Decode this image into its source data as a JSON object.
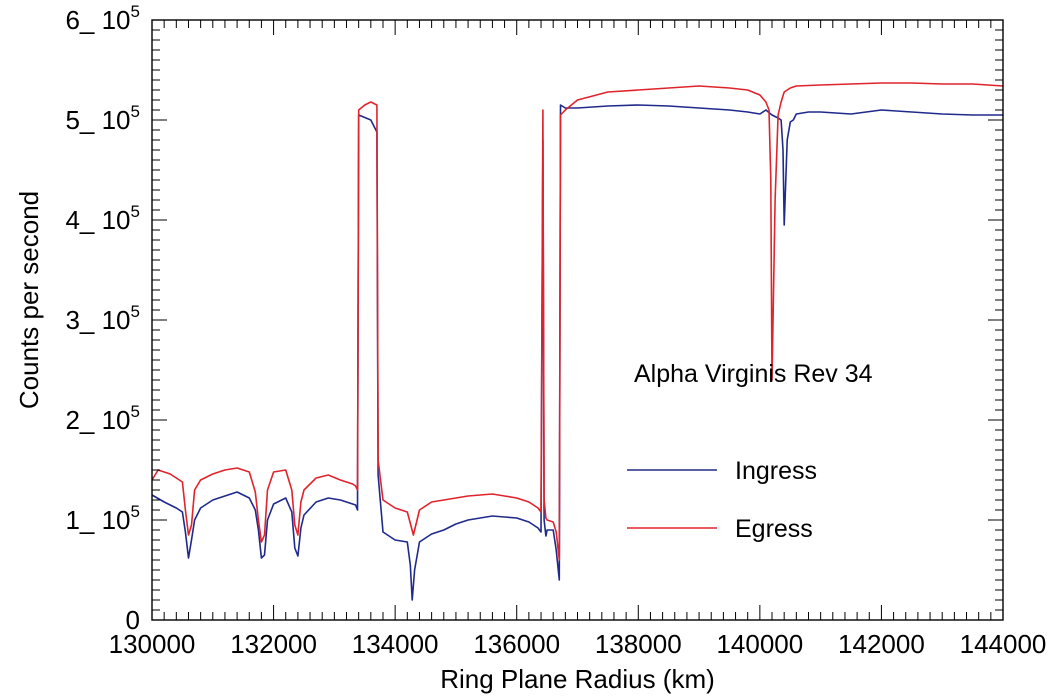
{
  "chart_data": {
    "type": "line",
    "title": "",
    "xlabel": "Ring Plane Radius (km)",
    "ylabel": "Counts per second",
    "xlim": [
      130000,
      144000
    ],
    "ylim": [
      0,
      600000
    ],
    "x_ticks": [
      {
        "value": 130000,
        "label": "130000"
      },
      {
        "value": 132000,
        "label": "132000"
      },
      {
        "value": 134000,
        "label": "134000"
      },
      {
        "value": 136000,
        "label": "136000"
      },
      {
        "value": 138000,
        "label": "138000"
      },
      {
        "value": 140000,
        "label": "140000"
      },
      {
        "value": 142000,
        "label": "142000"
      },
      {
        "value": 144000,
        "label": "144000"
      }
    ],
    "y_ticks": [
      {
        "value": 0,
        "mant": "0",
        "exp": ""
      },
      {
        "value": 100000,
        "mant": "1_ 10",
        "exp": "5"
      },
      {
        "value": 200000,
        "mant": "2_ 10",
        "exp": "5"
      },
      {
        "value": 300000,
        "mant": "3_ 10",
        "exp": "5"
      },
      {
        "value": 400000,
        "mant": "4_ 10",
        "exp": "5"
      },
      {
        "value": 500000,
        "mant": "5_ 10",
        "exp": "5"
      },
      {
        "value": 600000,
        "mant": "6_ 10",
        "exp": "5"
      }
    ],
    "grid": false,
    "annotation": "Alpha Virginis Rev 34",
    "legend_position": "center-right",
    "series": [
      {
        "name": "Ingress",
        "color": "#1f2a8c",
        "x": [
          130000,
          130200,
          130400,
          130500,
          130550,
          130600,
          130650,
          130700,
          130800,
          131000,
          131200,
          131400,
          131600,
          131700,
          131750,
          131800,
          131850,
          131900,
          132000,
          132200,
          132300,
          132350,
          132400,
          132450,
          132500,
          132700,
          132900,
          133100,
          133300,
          133350,
          133380,
          133400,
          133600,
          133700,
          133720,
          133800,
          134000,
          134200,
          134250,
          134280,
          134320,
          134400,
          134600,
          134800,
          135000,
          135200,
          135400,
          135600,
          135800,
          136000,
          136200,
          136350,
          136400,
          136430,
          136450,
          136480,
          136500,
          136600,
          136650,
          136700,
          136720,
          136800,
          137000,
          137500,
          138000,
          138500,
          139000,
          139500,
          139800,
          140000,
          140100,
          140200,
          140300,
          140350,
          140380,
          140400,
          140450,
          140500,
          140550,
          140600,
          140800,
          141000,
          141500,
          142000,
          142500,
          143000,
          143500,
          144000
        ],
        "values": [
          125000,
          118000,
          112000,
          108000,
          88000,
          62000,
          80000,
          100000,
          112000,
          120000,
          124000,
          128000,
          122000,
          110000,
          90000,
          62000,
          65000,
          100000,
          116000,
          122000,
          108000,
          72000,
          64000,
          92000,
          105000,
          118000,
          122000,
          120000,
          116000,
          115000,
          110000,
          505000,
          500000,
          488000,
          145000,
          88000,
          80000,
          78000,
          55000,
          20000,
          50000,
          78000,
          86000,
          90000,
          96000,
          100000,
          102000,
          104000,
          103000,
          102000,
          98000,
          92000,
          88000,
          480000,
          100000,
          84000,
          90000,
          90000,
          70000,
          40000,
          515000,
          512000,
          512000,
          514000,
          515000,
          514000,
          512000,
          510000,
          508000,
          506000,
          510000,
          505000,
          502000,
          500000,
          470000,
          395000,
          480000,
          498000,
          500000,
          506000,
          508000,
          508000,
          506000,
          510000,
          508000,
          506000,
          505000,
          505000
        ]
      },
      {
        "name": "Egress",
        "color": "#e0242c",
        "x": [
          130000,
          130100,
          130300,
          130500,
          130550,
          130600,
          130650,
          130700,
          130800,
          131000,
          131200,
          131400,
          131600,
          131700,
          131750,
          131800,
          131850,
          131900,
          132000,
          132200,
          132300,
          132350,
          132400,
          132450,
          132500,
          132700,
          132900,
          133100,
          133300,
          133350,
          133380,
          133400,
          133500,
          133600,
          133700,
          133720,
          133800,
          134000,
          134200,
          134300,
          134400,
          134600,
          134800,
          135000,
          135200,
          135400,
          135600,
          135800,
          136000,
          136200,
          136350,
          136400,
          136430,
          136450,
          136480,
          136500,
          136600,
          136650,
          136700,
          136720,
          136800,
          137000,
          137500,
          138000,
          138500,
          139000,
          139500,
          139800,
          140000,
          140100,
          140150,
          140180,
          140200,
          140250,
          140300,
          140350,
          140400,
          140500,
          140600,
          141000,
          141500,
          142000,
          142500,
          143000,
          143500,
          144000
        ],
        "values": [
          140000,
          150000,
          146000,
          138000,
          110000,
          85000,
          95000,
          130000,
          140000,
          146000,
          150000,
          152000,
          148000,
          128000,
          100000,
          78000,
          85000,
          130000,
          148000,
          150000,
          130000,
          95000,
          85000,
          118000,
          130000,
          142000,
          145000,
          140000,
          136000,
          134000,
          130000,
          510000,
          515000,
          518000,
          515000,
          160000,
          120000,
          112000,
          108000,
          85000,
          110000,
          118000,
          120000,
          122000,
          124000,
          125000,
          126000,
          124000,
          122000,
          118000,
          112000,
          108000,
          510000,
          120000,
          102000,
          100000,
          98000,
          88000,
          60000,
          505000,
          510000,
          520000,
          528000,
          530000,
          532000,
          534000,
          532000,
          530000,
          525000,
          518000,
          510000,
          440000,
          240000,
          420000,
          505000,
          518000,
          528000,
          532000,
          534000,
          535000,
          536000,
          537000,
          537000,
          536000,
          536000,
          534000
        ]
      }
    ]
  }
}
